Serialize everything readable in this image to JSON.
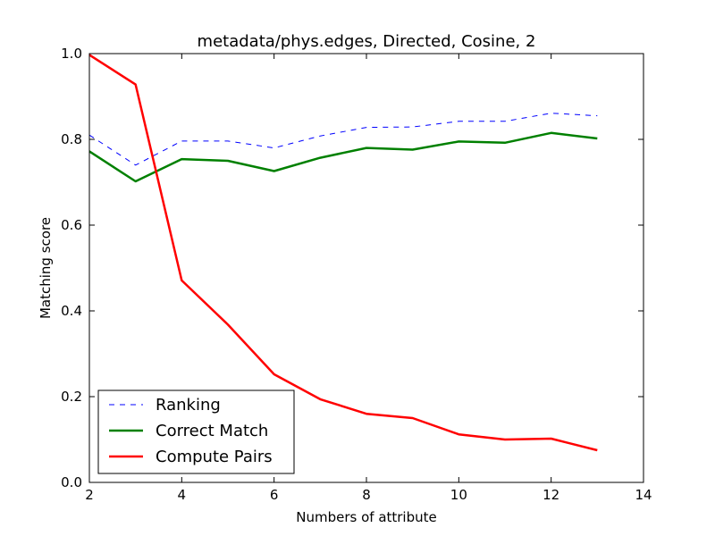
{
  "chart_data": {
    "type": "line",
    "title": "metadata/phys.edges, Directed, Cosine, 2",
    "xlabel": "Numbers of attribute",
    "ylabel": "Matching score",
    "xlim": [
      2,
      14
    ],
    "ylim": [
      0.0,
      1.0
    ],
    "xticks": [
      "2",
      "4",
      "6",
      "8",
      "10",
      "12",
      "14"
    ],
    "yticks": [
      "0.0",
      "0.2",
      "0.4",
      "0.6",
      "0.8",
      "1.0"
    ],
    "grid": false,
    "legend_position": "lower-left",
    "x": [
      2,
      3,
      4,
      5,
      6,
      7,
      8,
      9,
      10,
      11,
      12,
      13
    ],
    "series": [
      {
        "name": "Ranking",
        "style": "dashed",
        "color": "#0000ff",
        "values": [
          0.81,
          0.74,
          0.796,
          0.796,
          0.78,
          0.808,
          0.828,
          0.829,
          0.842,
          0.842,
          0.861,
          0.855
        ]
      },
      {
        "name": "Correct Match",
        "style": "solid",
        "color": "#008000",
        "values": [
          0.772,
          0.702,
          0.754,
          0.75,
          0.726,
          0.757,
          0.78,
          0.776,
          0.795,
          0.792,
          0.815,
          0.802
        ]
      },
      {
        "name": "Compute Pairs",
        "style": "solid",
        "color": "#ff0000",
        "values": [
          0.997,
          0.928,
          0.471,
          0.368,
          0.252,
          0.194,
          0.16,
          0.15,
          0.112,
          0.1,
          0.102,
          0.075
        ]
      }
    ]
  }
}
